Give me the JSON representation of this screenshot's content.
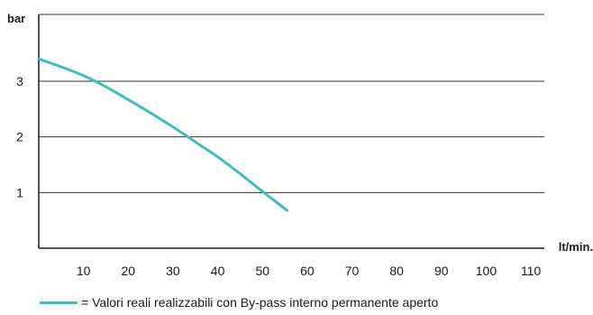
{
  "chart_data": {
    "type": "line",
    "title": "",
    "ylabel": "bar",
    "xlabel": "lt/min.",
    "xlim": [
      0,
      113
    ],
    "ylim": [
      0,
      4.2
    ],
    "x_ticks": [
      10,
      20,
      30,
      40,
      50,
      60,
      70,
      80,
      90,
      100,
      110
    ],
    "y_ticks": [
      1,
      2,
      3
    ],
    "grid": "horizontal",
    "legend_position": "bottom-left",
    "series": [
      {
        "name": "= Valori reali realizzabili con By-pass interno permanente aperto",
        "color": "#3fbcc0",
        "x": [
          0,
          5,
          10,
          15,
          20,
          25,
          30,
          35,
          40,
          45,
          50,
          55.5
        ],
        "y": [
          3.4,
          3.26,
          3.1,
          2.9,
          2.67,
          2.43,
          2.18,
          1.91,
          1.64,
          1.34,
          1.02,
          0.68
        ]
      }
    ]
  }
}
